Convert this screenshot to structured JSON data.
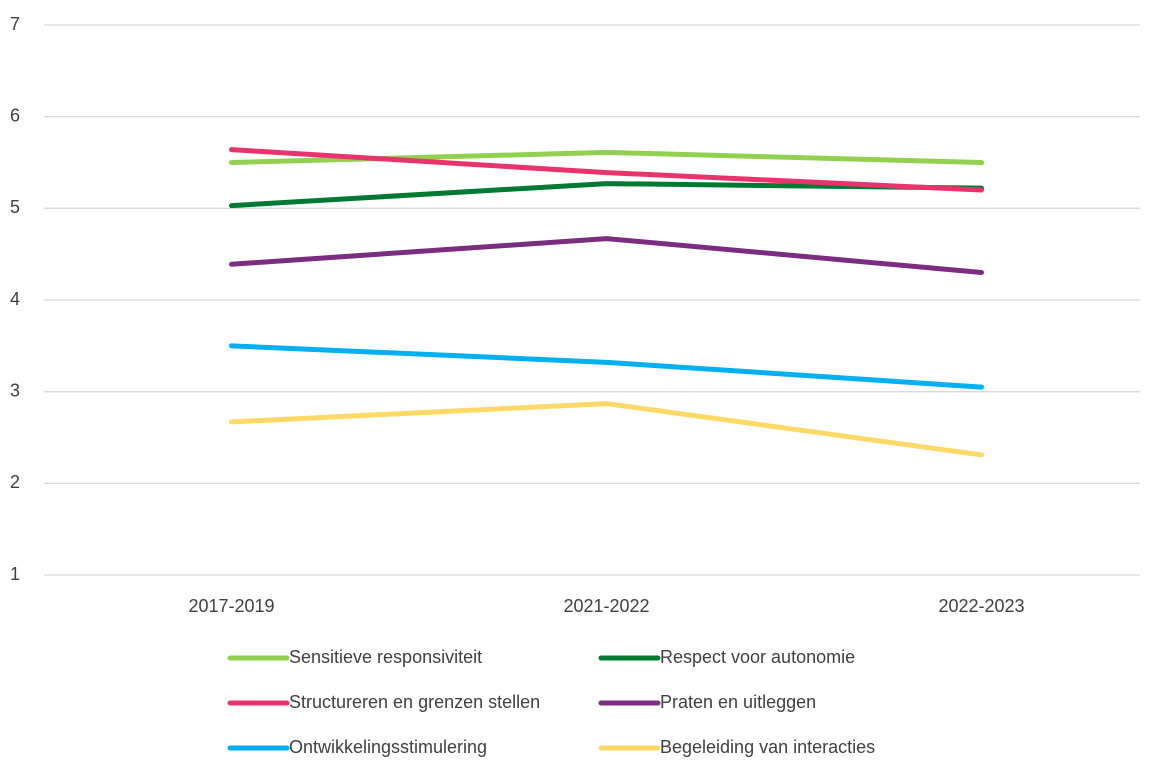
{
  "chart_data": {
    "type": "line",
    "categories": [
      "2017-2019",
      "2021-2022",
      "2022-2023"
    ],
    "series": [
      {
        "name": "Sensitieve responsiviteit",
        "color": "#92d050",
        "values": [
          5.5,
          5.61,
          5.5
        ]
      },
      {
        "name": "Respect voor autonomie",
        "color": "#007a33",
        "values": [
          5.03,
          5.27,
          5.22
        ]
      },
      {
        "name": "Structureren en grenzen stellen",
        "color": "#e8336d",
        "values": [
          5.64,
          5.39,
          5.2
        ]
      },
      {
        "name": "Praten en uitleggen",
        "color": "#7b2d7f",
        "values": [
          4.39,
          4.67,
          4.3
        ]
      },
      {
        "name": "Ontwikkelingsstimulering",
        "color": "#00b0f0",
        "values": [
          3.5,
          3.32,
          3.05
        ]
      },
      {
        "name": "Begeleiding van interacties",
        "color": "#ffd966",
        "values": [
          2.67,
          2.87,
          2.31
        ]
      }
    ],
    "ylim": [
      1,
      7
    ],
    "yticks": [
      1,
      2,
      3,
      4,
      5,
      6,
      7
    ],
    "grid": true,
    "legend": "bottom"
  }
}
